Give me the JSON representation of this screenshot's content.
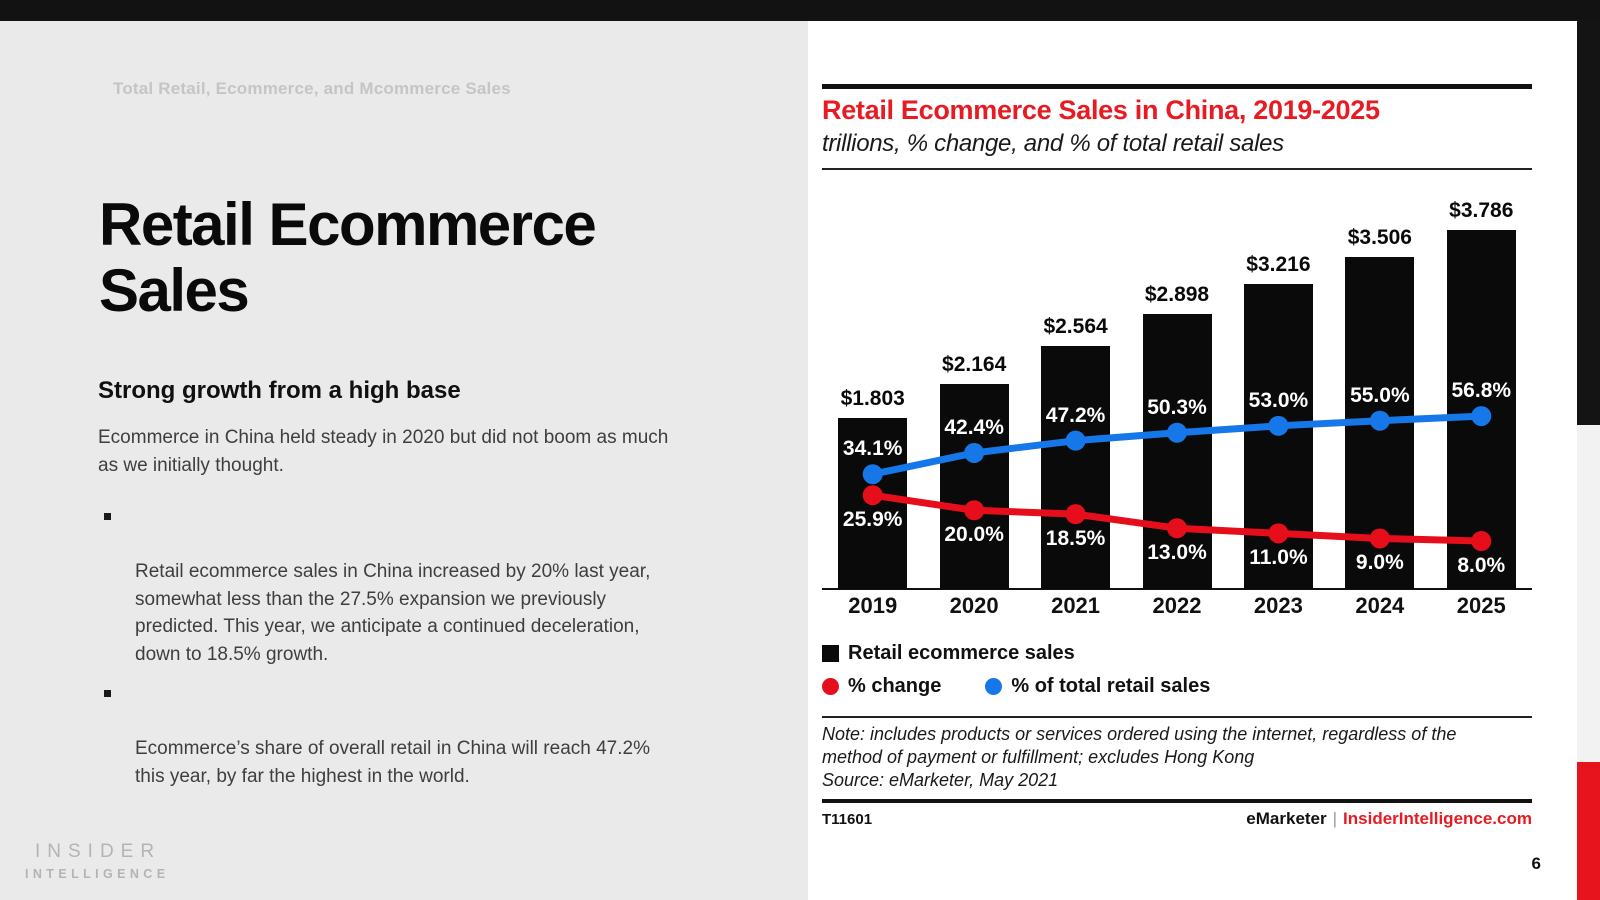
{
  "slide": {
    "kicker": "Total Retail, Ecommerce, and Mcommerce Sales",
    "title": "Retail Ecommerce\nSales",
    "heading": "Strong growth from a high base",
    "intro": "Ecommerce in China held steady in 2020 but did not boom as much\nas we initially thought.",
    "bullets": [
      "Retail ecommerce sales in China increased by 20% last year,\nsomewhat less than the 27.5% expansion we previously\npredicted. This year, we anticipate a continued deceleration,\ndown to 18.5% growth.",
      "Ecommerce’s share of overall retail in China will reach 47.2%\nthis year, by far the highest in the world."
    ],
    "logo_line1": "INSIDER",
    "logo_line2": "INTELLIGENCE",
    "page_number": "6"
  },
  "chart": {
    "note": "Note: includes products or services ordered using the internet, regardless of the\nmethod of payment or fulfillment; excludes Hong Kong",
    "source": "Source: eMarketer, May 2021",
    "footer_id": "T11601",
    "footer_brand": "eMarketer",
    "footer_divider": "|",
    "footer_site": "InsiderIntelligence.com"
  },
  "colors": {
    "brand_red": "#e81b23",
    "line_red": "#e60e1a",
    "line_blue": "#1577e8",
    "bar_black": "#0a0a0a",
    "left_bg": "#eaeaea",
    "strip_red": "#e8141d"
  },
  "chart_data": {
    "type": "bar",
    "title": "Retail Ecommerce Sales in China, 2019-2025",
    "subtitle": "trillions, % change, and % of total retail sales",
    "xlabel": "",
    "ylabel": "",
    "grid": false,
    "legend_position": "bottom",
    "bar_axis_range": [
      0,
      4
    ],
    "pct_axis_range": [
      0,
      60
    ],
    "categories": [
      "2019",
      "2020",
      "2021",
      "2022",
      "2023",
      "2024",
      "2025"
    ],
    "series": [
      {
        "name": "Retail ecommerce sales",
        "type": "bar",
        "unit": "USD trillions",
        "color": "#0a0a0a",
        "values": [
          1.803,
          2.164,
          2.564,
          2.898,
          3.216,
          3.506,
          3.786
        ],
        "labels": [
          "$1.803",
          "$2.164",
          "$2.564",
          "$2.898",
          "$3.216",
          "$3.506",
          "$3.786"
        ]
      },
      {
        "name": "% change",
        "type": "line",
        "color": "#e60e1a",
        "label_side": "below",
        "values": [
          25.9,
          20.0,
          18.5,
          13.0,
          11.0,
          9.0,
          8.0
        ],
        "labels": [
          "25.9%",
          "20.0%",
          "18.5%",
          "13.0%",
          "11.0%",
          "9.0%",
          "8.0%"
        ]
      },
      {
        "name": "% of total retail sales",
        "type": "line",
        "color": "#1577e8",
        "label_side": "above",
        "values": [
          34.1,
          42.4,
          47.2,
          50.3,
          53.0,
          55.0,
          56.8
        ],
        "labels": [
          "34.1%",
          "42.4%",
          "47.2%",
          "50.3%",
          "53.0%",
          "55.0%",
          "56.8%"
        ]
      }
    ]
  }
}
